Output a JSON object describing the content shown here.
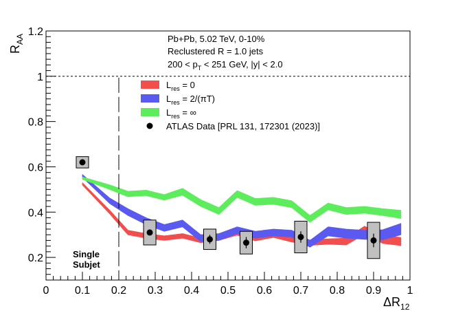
{
  "chart_data": {
    "type": "line",
    "xlim": [
      0,
      1
    ],
    "ylim": [
      0.1,
      1.2
    ],
    "xlabel": {
      "main": "ΔR",
      "sub": "12"
    },
    "ylabel": {
      "main": "R",
      "sub": "AA"
    },
    "x_ticks": [
      "0",
      "0.1",
      "0.2",
      "0.3",
      "0.4",
      "0.5",
      "0.6",
      "0.7",
      "0.8",
      "0.9",
      "1"
    ],
    "y_ticks": [
      "0.2",
      "0.4",
      "0.6",
      "0.8",
      "1",
      "1.2"
    ],
    "reference_line_y": 1.0,
    "single_subjet_boundary_x": 0.2,
    "annotation": [
      "Single",
      "Subjet"
    ],
    "info": {
      "line1": "Pb+Pb, 5.02 TeV, 0-10%",
      "line2": "Reclustered R = 1.0 jets",
      "line3_pre": "200 < p",
      "line3_sub": "T",
      "line3_post": " < 251 GeV, |y| < 2.0"
    },
    "series": [
      {
        "name": "L_res = 0",
        "label_main": "L",
        "label_sub": "res",
        "label_rest": " = 0",
        "color": "#f24e4e",
        "x": [
          0.1,
          0.175,
          0.225,
          0.275,
          0.325,
          0.375,
          0.425,
          0.475,
          0.525,
          0.575,
          0.625,
          0.675,
          0.725,
          0.775,
          0.825,
          0.875,
          0.925,
          0.975
        ],
        "y": [
          0.525,
          0.4,
          0.31,
          0.295,
          0.285,
          0.295,
          0.275,
          0.285,
          0.31,
          0.285,
          0.3,
          0.28,
          0.265,
          0.27,
          0.27,
          0.32,
          0.28,
          0.27
        ],
        "half_width": [
          0.005,
          0.008,
          0.01,
          0.01,
          0.01,
          0.01,
          0.01,
          0.01,
          0.012,
          0.012,
          0.012,
          0.012,
          0.012,
          0.012,
          0.015,
          0.018,
          0.018,
          0.018
        ]
      },
      {
        "name": "L_res = 2/(πT)",
        "label_main": "L",
        "label_sub": "res",
        "label_rest": " = 2/(πT)",
        "color": "#5a5af0",
        "x": [
          0.1,
          0.175,
          0.225,
          0.275,
          0.325,
          0.375,
          0.425,
          0.475,
          0.525,
          0.575,
          0.625,
          0.675,
          0.725,
          0.775,
          0.825,
          0.875,
          0.925,
          0.975
        ],
        "y": [
          0.56,
          0.45,
          0.4,
          0.36,
          0.33,
          0.35,
          0.285,
          0.29,
          0.32,
          0.3,
          0.31,
          0.305,
          0.26,
          0.315,
          0.305,
          0.3,
          0.3,
          0.325
        ],
        "half_width": [
          0.006,
          0.012,
          0.015,
          0.015,
          0.015,
          0.015,
          0.015,
          0.015,
          0.015,
          0.015,
          0.015,
          0.015,
          0.015,
          0.02,
          0.02,
          0.02,
          0.022,
          0.025
        ]
      },
      {
        "name": "L_res = ∞",
        "label_main": "L",
        "label_sub": "res",
        "label_rest": " =   ∞",
        "color": "#5cec5c",
        "x": [
          0.1,
          0.175,
          0.225,
          0.275,
          0.325,
          0.375,
          0.425,
          0.475,
          0.525,
          0.575,
          0.625,
          0.675,
          0.725,
          0.775,
          0.825,
          0.875,
          0.925,
          0.975
        ],
        "y": [
          0.55,
          0.51,
          0.48,
          0.485,
          0.465,
          0.49,
          0.44,
          0.405,
          0.48,
          0.445,
          0.45,
          0.435,
          0.37,
          0.425,
          0.405,
          0.41,
          0.4,
          0.39
        ],
        "half_width": [
          0.005,
          0.01,
          0.012,
          0.012,
          0.012,
          0.015,
          0.015,
          0.015,
          0.015,
          0.015,
          0.015,
          0.015,
          0.015,
          0.015,
          0.015,
          0.015,
          0.015,
          0.018
        ]
      }
    ],
    "data_points": {
      "name": "ATLAS Data [PRL 131, 172301 (2023)]",
      "color": "#000000",
      "x": [
        0.1,
        0.285,
        0.45,
        0.55,
        0.7,
        0.9
      ],
      "y": [
        0.62,
        0.31,
        0.28,
        0.265,
        0.29,
        0.275
      ],
      "stat_err": [
        0.005,
        0.008,
        0.02,
        0.025,
        0.025,
        0.03
      ],
      "syst_dx": [
        0.017,
        0.017,
        0.017,
        0.017,
        0.017,
        0.017
      ],
      "syst_dy": [
        0.025,
        0.055,
        0.045,
        0.05,
        0.07,
        0.08
      ],
      "syst_color": "#c0c0c0"
    }
  }
}
